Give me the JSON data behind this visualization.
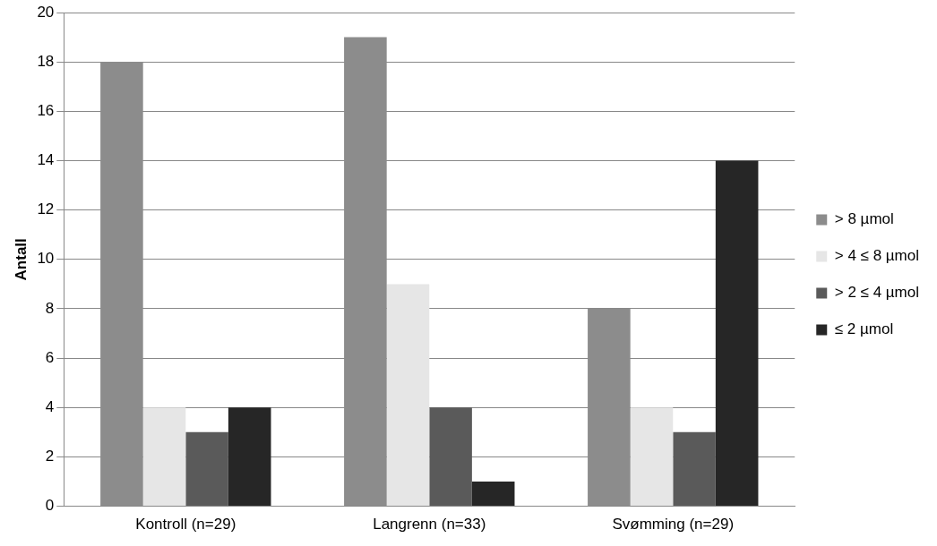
{
  "chart_data": {
    "type": "bar",
    "ylabel": "Antall",
    "categories": [
      "Kontroll (n=29)",
      "Langrenn (n=33)",
      "Svømming (n=29)"
    ],
    "series": [
      {
        "name": "> 8 µmol",
        "color": "#8c8c8c",
        "values": [
          18,
          19,
          8
        ]
      },
      {
        "name": "> 4 ≤ 8 µmol",
        "color": "#e6e6e6",
        "values": [
          4,
          9,
          4
        ]
      },
      {
        "name": "> 2 ≤ 4 µmol",
        "color": "#5a5a5a",
        "values": [
          3,
          4,
          3
        ]
      },
      {
        "name": "≤ 2 µmol",
        "color": "#262626",
        "values": [
          4,
          1,
          14
        ]
      }
    ],
    "ylim": [
      0,
      20
    ],
    "yticks": [
      0,
      2,
      4,
      6,
      8,
      10,
      12,
      14,
      16,
      18,
      20
    ],
    "grid": "y",
    "legend": "right"
  }
}
